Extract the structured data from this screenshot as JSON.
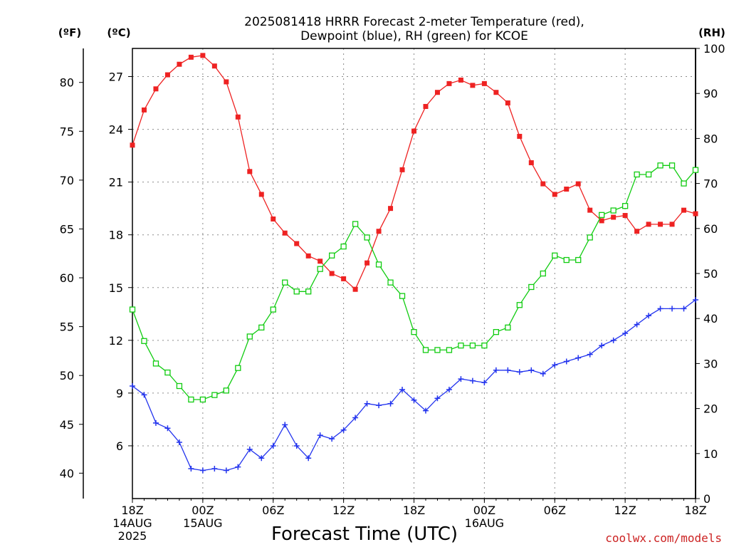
{
  "colors": {
    "temperature": "#ee2222",
    "dewpoint": "#2233ee",
    "rh": "#11cc11",
    "credit": "#cc2222"
  },
  "chart_data": {
    "type": "line",
    "title_line1": "2025081418 HRRR Forecast 2-meter Temperature (red),",
    "title_line2": "Dewpoint (blue), RH (green) for KCOE",
    "xlabel": "Forecast Time (UTC)",
    "credit": "coolwx.com/models",
    "unit_f": "(ºF)",
    "unit_c": "(ºC)",
    "unit_rh": "(RH)",
    "x_hours": [
      0,
      1,
      2,
      3,
      4,
      5,
      6,
      7,
      8,
      9,
      10,
      11,
      12,
      13,
      14,
      15,
      16,
      17,
      18,
      19,
      20,
      21,
      22,
      23,
      24,
      25,
      26,
      27,
      28,
      29,
      30,
      31,
      32,
      33,
      34,
      35,
      36,
      37,
      38,
      39,
      40,
      41,
      42,
      43,
      44,
      45,
      46,
      47,
      48
    ],
    "x_range": [
      0,
      48
    ],
    "x_ticks": [
      {
        "hour": 0,
        "lines": [
          "18Z",
          "14AUG",
          "2025"
        ]
      },
      {
        "hour": 6,
        "lines": [
          "00Z",
          "15AUG"
        ]
      },
      {
        "hour": 12,
        "lines": [
          "06Z"
        ]
      },
      {
        "hour": 18,
        "lines": [
          "12Z"
        ]
      },
      {
        "hour": 24,
        "lines": [
          "18Z"
        ]
      },
      {
        "hour": 30,
        "lines": [
          "00Z",
          "16AUG"
        ]
      },
      {
        "hour": 36,
        "lines": [
          "06Z"
        ]
      },
      {
        "hour": 42,
        "lines": [
          "12Z"
        ]
      },
      {
        "hour": 48,
        "lines": [
          "18Z"
        ]
      }
    ],
    "celsius_axis": {
      "range": [
        3.0,
        28.6
      ],
      "ticks": [
        6,
        9,
        12,
        15,
        18,
        21,
        24,
        27
      ]
    },
    "fahrenheit_axis": {
      "ticks": [
        40,
        45,
        50,
        55,
        60,
        65,
        70,
        75,
        80
      ]
    },
    "rh_axis": {
      "range": [
        0,
        100
      ],
      "ticks": [
        0,
        10,
        20,
        30,
        40,
        50,
        60,
        70,
        80,
        90,
        100
      ]
    },
    "grid": true,
    "series": [
      {
        "name": "Temperature",
        "axis": "celsius",
        "marker": "filled-square",
        "values": [
          23.1,
          25.1,
          26.3,
          27.1,
          27.7,
          28.1,
          28.2,
          27.6,
          26.7,
          24.7,
          21.6,
          20.3,
          18.9,
          18.1,
          17.5,
          16.8,
          16.5,
          15.8,
          15.5,
          14.9,
          16.4,
          18.2,
          19.5,
          21.7,
          23.9,
          25.3,
          26.1,
          26.6,
          26.8,
          26.5,
          26.6,
          26.1,
          25.5,
          23.6,
          22.1,
          20.9,
          20.3,
          20.6,
          20.9,
          19.4,
          18.8,
          19.0,
          19.1,
          18.2,
          18.6,
          18.6,
          18.6,
          19.4,
          19.2
        ]
      },
      {
        "name": "Dewpoint",
        "axis": "celsius",
        "marker": "plus",
        "values": [
          9.4,
          8.9,
          7.3,
          7.0,
          6.2,
          4.7,
          4.6,
          4.7,
          4.6,
          4.8,
          5.8,
          5.3,
          6.0,
          7.2,
          6.0,
          5.3,
          6.6,
          6.4,
          6.9,
          7.6,
          8.4,
          8.3,
          8.4,
          9.2,
          8.6,
          8.0,
          8.7,
          9.2,
          9.8,
          9.7,
          9.6,
          10.3,
          10.3,
          10.2,
          10.3,
          10.1,
          10.6,
          10.8,
          11.0,
          11.2,
          11.7,
          12.0,
          12.4,
          12.9,
          13.4,
          13.8,
          13.8,
          13.8,
          14.3
        ]
      },
      {
        "name": "RH",
        "axis": "rh",
        "marker": "open-square",
        "values": [
          42,
          35,
          30,
          28,
          25,
          22,
          22,
          23,
          24,
          29,
          36,
          38,
          42,
          48,
          46,
          46,
          51,
          54,
          56,
          61,
          58,
          52,
          48,
          45,
          37,
          33,
          33,
          33,
          34,
          34,
          34,
          37,
          38,
          43,
          47,
          50,
          54,
          53,
          53,
          58,
          63,
          64,
          65,
          72,
          72,
          74,
          74,
          70,
          73
        ]
      }
    ]
  }
}
